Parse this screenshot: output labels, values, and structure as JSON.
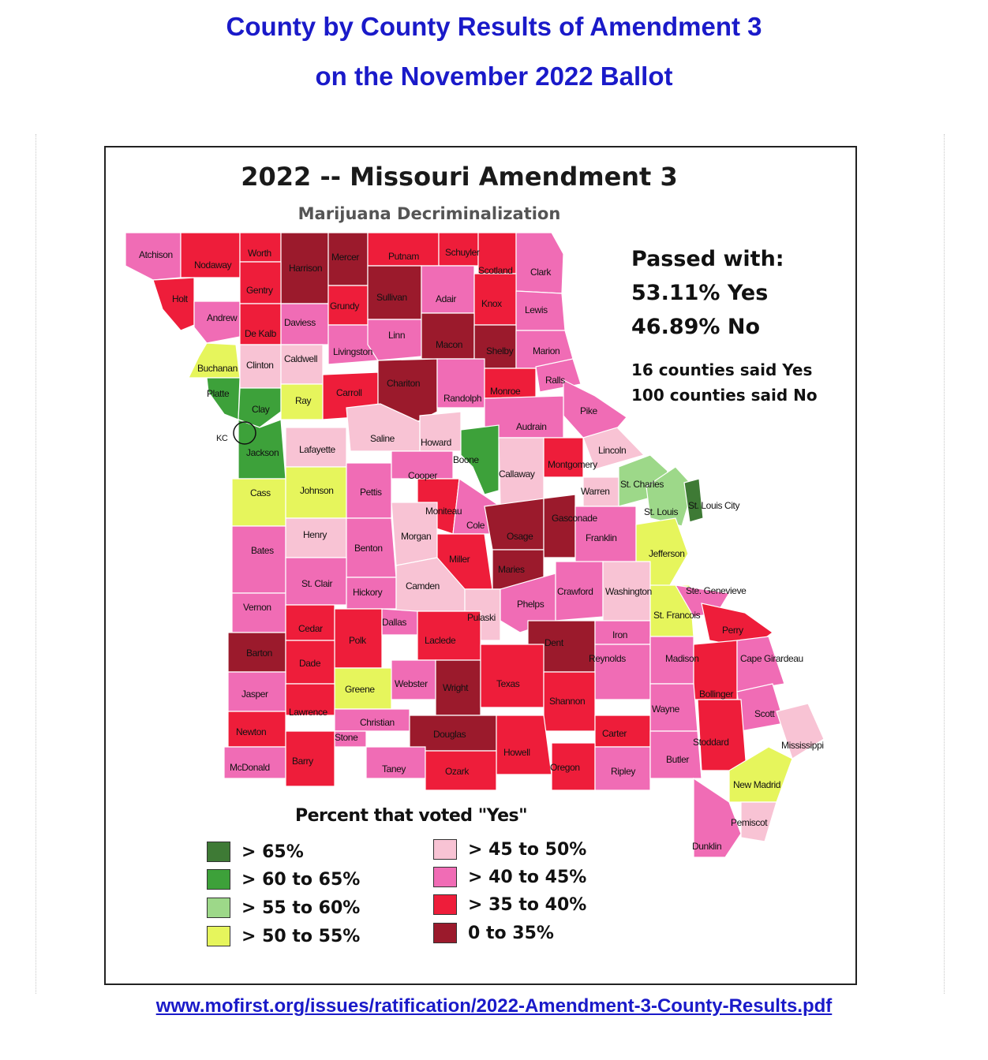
{
  "header": {
    "line1": "County by County Results of Amendment 3",
    "line2": "on the November 2022 Ballot"
  },
  "map": {
    "title": "2022 -- Missouri Amendment 3",
    "subtitle": "Marijuana Decriminalization",
    "passed_label": "Passed with:",
    "yes_pct": "53.11% Yes",
    "no_pct": "46.89% No",
    "counties_yes": "16 counties said Yes",
    "counties_no": "100 counties said No",
    "kc_label": "KC"
  },
  "legend": {
    "title": "Percent that voted \"Yes\"",
    "items": [
      {
        "label": "> 65%",
        "color": "#3e7a35"
      },
      {
        "label": "> 60 to 65%",
        "color": "#3da13a"
      },
      {
        "label": "> 55 to 60%",
        "color": "#9dd889"
      },
      {
        "label": "> 50 to 55%",
        "color": "#e6f55c"
      },
      {
        "label": "> 45 to 50%",
        "color": "#f8c3d4"
      },
      {
        "label": "> 40 to 45%",
        "color": "#f06cb5"
      },
      {
        "label": "> 35 to 40%",
        "color": "#ee1d3a"
      },
      {
        "label": "0 to 35%",
        "color": "#9b1a2c"
      }
    ]
  },
  "footer": {
    "link": "www.mofirst.org/issues/ratification/2022-Amendment-3-County-Results.pdf"
  },
  "counties": [
    {
      "name": "Atchison",
      "bin": "> 40 to 45%"
    },
    {
      "name": "Nodaway",
      "bin": "> 35 to 40%"
    },
    {
      "name": "Worth",
      "bin": "> 35 to 40%"
    },
    {
      "name": "Harrison",
      "bin": "0 to 35%"
    },
    {
      "name": "Mercer",
      "bin": "0 to 35%"
    },
    {
      "name": "Putnam",
      "bin": "> 35 to 40%"
    },
    {
      "name": "Schuyler",
      "bin": "> 35 to 40%"
    },
    {
      "name": "Scotland",
      "bin": "> 35 to 40%"
    },
    {
      "name": "Clark",
      "bin": "> 40 to 45%"
    },
    {
      "name": "Holt",
      "bin": "> 35 to 40%"
    },
    {
      "name": "Andrew",
      "bin": "> 40 to 45%"
    },
    {
      "name": "Gentry",
      "bin": "> 35 to 40%"
    },
    {
      "name": "De Kalb",
      "bin": "> 35 to 40%"
    },
    {
      "name": "Daviess",
      "bin": "> 40 to 45%"
    },
    {
      "name": "Grundy",
      "bin": "> 35 to 40%"
    },
    {
      "name": "Sullivan",
      "bin": "0 to 35%"
    },
    {
      "name": "Adair",
      "bin": "> 40 to 45%"
    },
    {
      "name": "Knox",
      "bin": "> 35 to 40%"
    },
    {
      "name": "Lewis",
      "bin": "> 40 to 45%"
    },
    {
      "name": "Buchanan",
      "bin": "> 50 to 55%"
    },
    {
      "name": "Clinton",
      "bin": "> 45 to 50%"
    },
    {
      "name": "Caldwell",
      "bin": "> 45 to 50%"
    },
    {
      "name": "Livingston",
      "bin": "> 40 to 45%"
    },
    {
      "name": "Linn",
      "bin": "> 40 to 45%"
    },
    {
      "name": "Macon",
      "bin": "0 to 35%"
    },
    {
      "name": "Shelby",
      "bin": "0 to 35%"
    },
    {
      "name": "Marion",
      "bin": "> 40 to 45%"
    },
    {
      "name": "Platte",
      "bin": "> 60 to 65%"
    },
    {
      "name": "Clay",
      "bin": "> 60 to 65%"
    },
    {
      "name": "Ray",
      "bin": "> 50 to 55%"
    },
    {
      "name": "Carroll",
      "bin": "> 35 to 40%"
    },
    {
      "name": "Chariton",
      "bin": "0 to 35%"
    },
    {
      "name": "Randolph",
      "bin": "> 40 to 45%"
    },
    {
      "name": "Monroe",
      "bin": "> 35 to 40%"
    },
    {
      "name": "Ralls",
      "bin": "> 40 to 45%"
    },
    {
      "name": "Pike",
      "bin": "> 40 to 45%"
    },
    {
      "name": "Audrain",
      "bin": "> 40 to 45%"
    },
    {
      "name": "Jackson",
      "bin": "> 60 to 65%"
    },
    {
      "name": "Lafayette",
      "bin": "> 45 to 50%"
    },
    {
      "name": "Saline",
      "bin": "> 45 to 50%"
    },
    {
      "name": "Howard",
      "bin": "> 45 to 50%"
    },
    {
      "name": "Boone",
      "bin": "> 60 to 65%"
    },
    {
      "name": "Callaway",
      "bin": "> 45 to 50%"
    },
    {
      "name": "Montgomery",
      "bin": "> 35 to 40%"
    },
    {
      "name": "Lincoln",
      "bin": "> 45 to 50%"
    },
    {
      "name": "St. Charles",
      "bin": "> 55 to 60%"
    },
    {
      "name": "St. Louis",
      "bin": "> 55 to 60%"
    },
    {
      "name": "St. Louis City",
      "bin": "> 65%"
    },
    {
      "name": "Warren",
      "bin": "> 45 to 50%"
    },
    {
      "name": "Cass",
      "bin": "> 50 to 55%"
    },
    {
      "name": "Johnson",
      "bin": "> 50 to 55%"
    },
    {
      "name": "Pettis",
      "bin": "> 40 to 45%"
    },
    {
      "name": "Cooper",
      "bin": "> 40 to 45%"
    },
    {
      "name": "Moniteau",
      "bin": "> 35 to 40%"
    },
    {
      "name": "Cole",
      "bin": "> 40 to 45%"
    },
    {
      "name": "Osage",
      "bin": "0 to 35%"
    },
    {
      "name": "Gasconade",
      "bin": "0 to 35%"
    },
    {
      "name": "Franklin",
      "bin": "> 40 to 45%"
    },
    {
      "name": "Jefferson",
      "bin": "> 50 to 55%"
    },
    {
      "name": "Bates",
      "bin": "> 40 to 45%"
    },
    {
      "name": "Henry",
      "bin": "> 45 to 50%"
    },
    {
      "name": "Benton",
      "bin": "> 40 to 45%"
    },
    {
      "name": "Morgan",
      "bin": "> 45 to 50%"
    },
    {
      "name": "Miller",
      "bin": "> 35 to 40%"
    },
    {
      "name": "Maries",
      "bin": "0 to 35%"
    },
    {
      "name": "Vernon",
      "bin": "> 40 to 45%"
    },
    {
      "name": "St. Clair",
      "bin": "> 40 to 45%"
    },
    {
      "name": "Hickory",
      "bin": "> 40 to 45%"
    },
    {
      "name": "Camden",
      "bin": "> 45 to 50%"
    },
    {
      "name": "Pulaski",
      "bin": "> 45 to 50%"
    },
    {
      "name": "Phelps",
      "bin": "> 40 to 45%"
    },
    {
      "name": "Crawford",
      "bin": "> 40 to 45%"
    },
    {
      "name": "Washington",
      "bin": "> 45 to 50%"
    },
    {
      "name": "St. Francois",
      "bin": "> 50 to 55%"
    },
    {
      "name": "Ste. Genevieve",
      "bin": "> 40 to 45%"
    },
    {
      "name": "Perry",
      "bin": "> 35 to 40%"
    },
    {
      "name": "Barton",
      "bin": "0 to 35%"
    },
    {
      "name": "Cedar",
      "bin": "> 35 to 40%"
    },
    {
      "name": "Polk",
      "bin": "> 35 to 40%"
    },
    {
      "name": "Dallas",
      "bin": "> 40 to 45%"
    },
    {
      "name": "Laclede",
      "bin": "> 35 to 40%"
    },
    {
      "name": "Dent",
      "bin": "0 to 35%"
    },
    {
      "name": "Iron",
      "bin": "> 40 to 45%"
    },
    {
      "name": "Reynolds",
      "bin": "> 40 to 45%"
    },
    {
      "name": "Madison",
      "bin": "> 40 to 45%"
    },
    {
      "name": "Bollinger",
      "bin": "> 35 to 40%"
    },
    {
      "name": "Cape Girardeau",
      "bin": "> 40 to 45%"
    },
    {
      "name": "Dade",
      "bin": "> 35 to 40%"
    },
    {
      "name": "Jasper",
      "bin": "> 40 to 45%"
    },
    {
      "name": "Greene",
      "bin": "> 50 to 55%"
    },
    {
      "name": "Webster",
      "bin": "> 40 to 45%"
    },
    {
      "name": "Wright",
      "bin": "0 to 35%"
    },
    {
      "name": "Texas",
      "bin": "> 35 to 40%"
    },
    {
      "name": "Shannon",
      "bin": "> 35 to 40%"
    },
    {
      "name": "Wayne",
      "bin": "> 40 to 45%"
    },
    {
      "name": "Scott",
      "bin": "> 40 to 45%"
    },
    {
      "name": "Lawrence",
      "bin": "> 35 to 40%"
    },
    {
      "name": "Christian",
      "bin": "> 40 to 45%"
    },
    {
      "name": "Newton",
      "bin": "> 35 to 40%"
    },
    {
      "name": "Stone",
      "bin": "> 40 to 45%"
    },
    {
      "name": "Douglas",
      "bin": "0 to 35%"
    },
    {
      "name": "Howell",
      "bin": "> 35 to 40%"
    },
    {
      "name": "Carter",
      "bin": "> 35 to 40%"
    },
    {
      "name": "Stoddard",
      "bin": "> 35 to 40%"
    },
    {
      "name": "Mississippi",
      "bin": "> 45 to 50%"
    },
    {
      "name": "McDonald",
      "bin": "> 40 to 45%"
    },
    {
      "name": "Barry",
      "bin": "> 35 to 40%"
    },
    {
      "name": "Taney",
      "bin": "> 40 to 45%"
    },
    {
      "name": "Ozark",
      "bin": "> 35 to 40%"
    },
    {
      "name": "Oregon",
      "bin": "> 35 to 40%"
    },
    {
      "name": "Ripley",
      "bin": "> 40 to 45%"
    },
    {
      "name": "Butler",
      "bin": "> 40 to 45%"
    },
    {
      "name": "New Madrid",
      "bin": "> 50 to 55%"
    },
    {
      "name": "Pemiscot",
      "bin": "> 45 to 50%"
    },
    {
      "name": "Dunklin",
      "bin": "> 40 to 45%"
    }
  ]
}
